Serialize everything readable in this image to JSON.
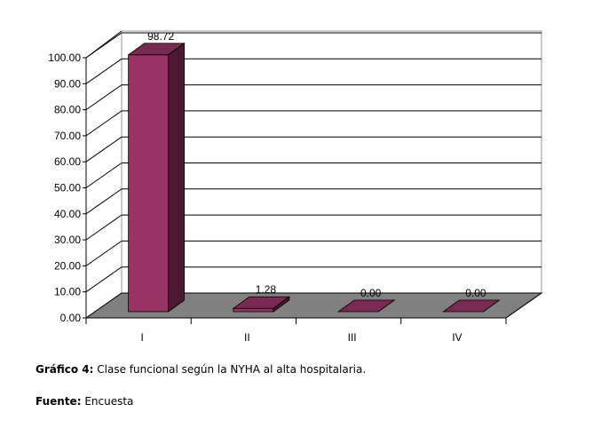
{
  "chart_data": {
    "type": "bar3d",
    "categories": [
      "I",
      "II",
      "III",
      "IV"
    ],
    "values": [
      98.72,
      1.28,
      0,
      0
    ],
    "value_labels": [
      "98.72",
      "1.28",
      "0.00",
      "0.00"
    ],
    "color": "#993366",
    "ylim": [
      0,
      100
    ],
    "yticks": [
      {
        "value": 0,
        "label": "0.00"
      },
      {
        "value": 10,
        "label": "10.00"
      },
      {
        "value": 20,
        "label": "20.00"
      },
      {
        "value": 30,
        "label": "30.00"
      },
      {
        "value": 40,
        "label": "40.00"
      },
      {
        "value": 50,
        "label": "50.00"
      },
      {
        "value": 60,
        "label": "60.00"
      },
      {
        "value": 70,
        "label": "70.00"
      },
      {
        "value": 80,
        "label": "80.00"
      },
      {
        "value": 90,
        "label": "90.00"
      },
      {
        "value": 100,
        "label": "100.00"
      }
    ],
    "grid": true,
    "caption_label": "Gráfico 4:",
    "caption": "Clase funcional según la NYHA al alta hospitalaria.",
    "source_label": "Fuente:",
    "source": "Encuesta"
  }
}
